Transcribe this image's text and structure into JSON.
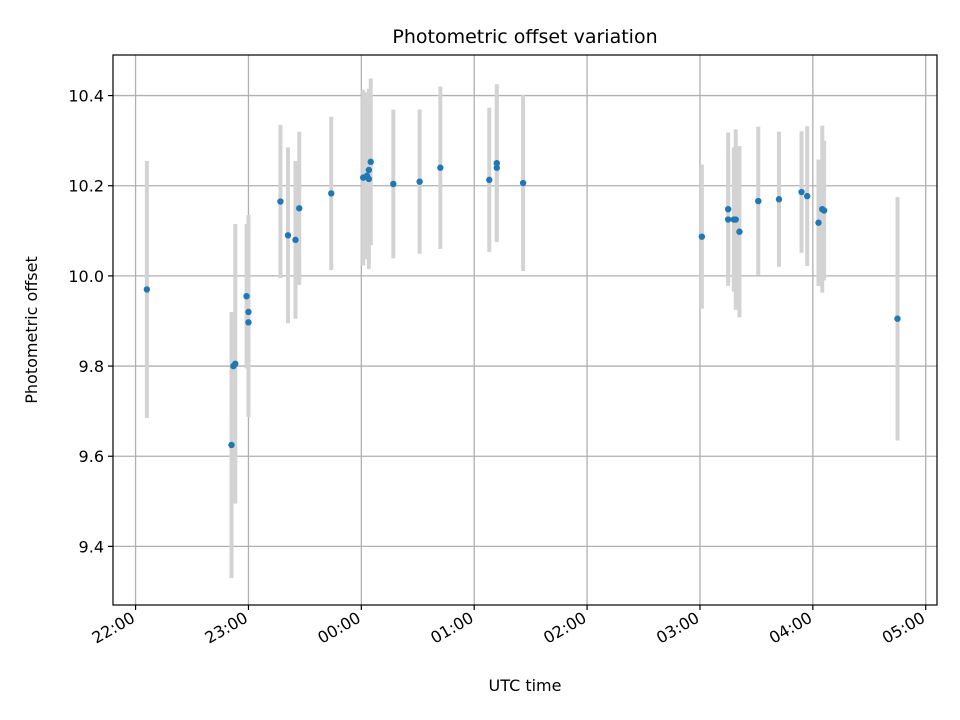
{
  "chart_data": {
    "type": "scatter",
    "title": "Photometric offset variation",
    "xlabel": "UTC time",
    "ylabel": "Photometric offset",
    "x_unit": "UTC time of day (hours, spanning midnight)",
    "xlim": [
      "21:48",
      "05:06"
    ],
    "ylim": [
      9.27,
      10.49
    ],
    "x_ticks": [
      "22:00",
      "23:00",
      "00:00",
      "01:00",
      "02:00",
      "03:00",
      "04:00",
      "05:00"
    ],
    "y_ticks": [
      "9.4",
      "9.6",
      "9.8",
      "10.0",
      "10.2",
      "10.4"
    ],
    "grid": true,
    "colors": {
      "points": "#1f77b4",
      "errorbars": "#d3d3d3",
      "grid": "#b0b0b0"
    },
    "series": [
      {
        "points": [
          {
            "x": "22:06",
            "y": 9.97,
            "err": 0.285
          },
          {
            "x": "22:51",
            "y": 9.625,
            "err": 0.295
          },
          {
            "x": "22:52",
            "y": 9.8,
            "err": 0.115
          },
          {
            "x": "22:53",
            "y": 9.805,
            "err": 0.31
          },
          {
            "x": "22:59",
            "y": 9.955,
            "err": 0.16
          },
          {
            "x": "23:00",
            "y": 9.897,
            "err": 0.21
          },
          {
            "x": "23:00",
            "y": 9.92,
            "err": 0.215
          },
          {
            "x": "23:17",
            "y": 10.165,
            "err": 0.17
          },
          {
            "x": "23:21",
            "y": 10.09,
            "err": 0.195
          },
          {
            "x": "23:25",
            "y": 10.08,
            "err": 0.175
          },
          {
            "x": "23:27",
            "y": 10.15,
            "err": 0.17
          },
          {
            "x": "23:44",
            "y": 10.183,
            "err": 0.17
          },
          {
            "x": "00:01",
            "y": 10.218,
            "err": 0.195
          },
          {
            "x": "00:03",
            "y": 10.222,
            "err": 0.185
          },
          {
            "x": "00:04",
            "y": 10.215,
            "err": 0.2
          },
          {
            "x": "00:04",
            "y": 10.235,
            "err": 0.16
          },
          {
            "x": "00:05",
            "y": 10.253,
            "err": 0.185
          },
          {
            "x": "00:17",
            "y": 10.204,
            "err": 0.165
          },
          {
            "x": "00:31",
            "y": 10.209,
            "err": 0.16
          },
          {
            "x": "00:42",
            "y": 10.24,
            "err": 0.18
          },
          {
            "x": "01:08",
            "y": 10.213,
            "err": 0.16
          },
          {
            "x": "01:12",
            "y": 10.24,
            "err": 0.16
          },
          {
            "x": "01:12",
            "y": 10.25,
            "err": 0.175
          },
          {
            "x": "01:26",
            "y": 10.206,
            "err": 0.195
          },
          {
            "x": "03:01",
            "y": 10.087,
            "err": 0.16
          },
          {
            "x": "03:15",
            "y": 10.125,
            "err": 0.14
          },
          {
            "x": "03:15",
            "y": 10.148,
            "err": 0.17
          },
          {
            "x": "03:18",
            "y": 10.125,
            "err": 0.16
          },
          {
            "x": "03:19",
            "y": 10.125,
            "err": 0.2
          },
          {
            "x": "03:21",
            "y": 10.098,
            "err": 0.19
          },
          {
            "x": "03:31",
            "y": 10.166,
            "err": 0.165
          },
          {
            "x": "03:42",
            "y": 10.17,
            "err": 0.15
          },
          {
            "x": "03:54",
            "y": 10.186,
            "err": 0.135
          },
          {
            "x": "03:57",
            "y": 10.177,
            "err": 0.155
          },
          {
            "x": "04:03",
            "y": 10.118,
            "err": 0.14
          },
          {
            "x": "04:05",
            "y": 10.148,
            "err": 0.185
          },
          {
            "x": "04:06",
            "y": 10.145,
            "err": 0.155
          },
          {
            "x": "04:45",
            "y": 9.905,
            "err": 0.27
          }
        ]
      }
    ]
  }
}
